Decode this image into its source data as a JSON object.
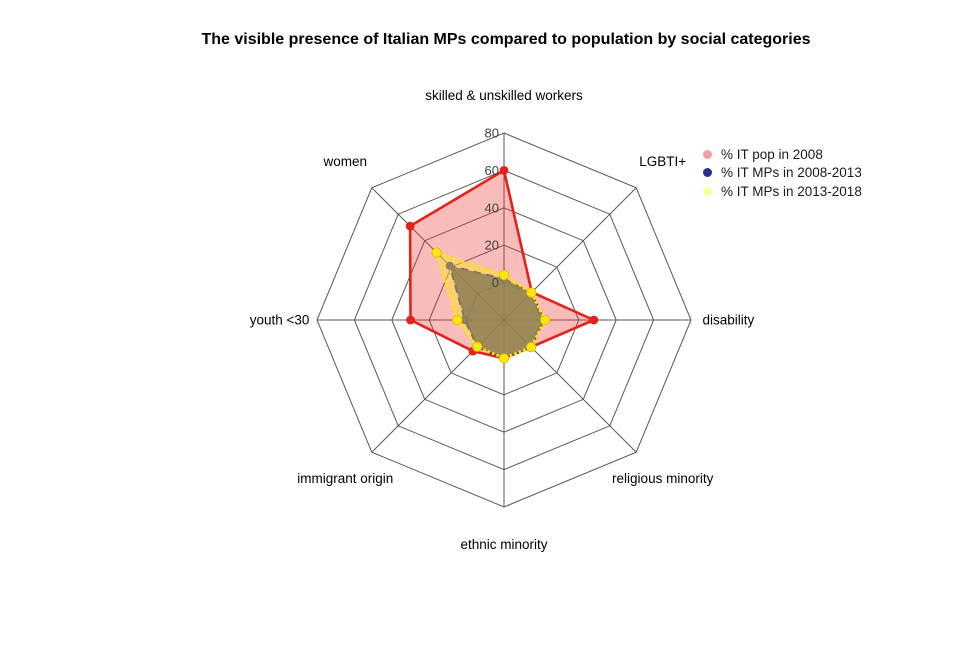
{
  "title": "The visible presence of Italian MPs compared to population by social categories",
  "chart_data": {
    "type": "radar",
    "categories": [
      "skilled & unskilled workers",
      "LGBTI+",
      "disability",
      "religious minority",
      "ethnic minority",
      "immigrant origin",
      "youth <30",
      "women"
    ],
    "series": [
      {
        "name": "% IT pop in 2008",
        "values": [
          60,
          1,
          28,
          0.5,
          0.5,
          3.5,
          30,
          51
        ],
        "line_color": "#E32219",
        "fill_color": "rgba(235,55,50,0.33)",
        "point_color": "#E32219",
        "line_style": "solid",
        "legend_color": "#F2A0A4"
      },
      {
        "name": "% IT MPs in 2008-2013",
        "values": [
          2,
          0.7,
          1.5,
          0.5,
          0.8,
          0.3,
          1,
          21
        ],
        "line_color": "#1A1E63",
        "fill_color": "rgba(28,30,115,0.78)",
        "point_color": "#2A2F8F",
        "line_style": "dashed",
        "legend_color": "#2A2F8F"
      },
      {
        "name": "% IT MPs in 2013-2018",
        "values": [
          4,
          0.7,
          2,
          0.5,
          0.5,
          0.3,
          5,
          31
        ],
        "line_color": "#FFE512",
        "fill_color": "rgba(255,228,40,0.45)",
        "point_color": "#FFE512",
        "point_edge_color": "#D8BA00",
        "line_style": "dotted",
        "legend_color": "#FDFD9E"
      }
    ],
    "axis": {
      "min": -20,
      "max": 80,
      "ring_values": [
        0,
        20,
        40,
        60,
        80
      ],
      "tick_labels": [
        "0",
        "20",
        "40",
        "60",
        "80"
      ]
    },
    "grid_color": "#575757",
    "tick_color": "#3f3f3f",
    "label_color": "#000000",
    "legend_position": "top-right",
    "grid": true
  },
  "legend": {
    "items": [
      "% IT pop in 2008",
      "% IT MPs in 2008-2013",
      "% IT MPs in 2013-2018"
    ]
  }
}
